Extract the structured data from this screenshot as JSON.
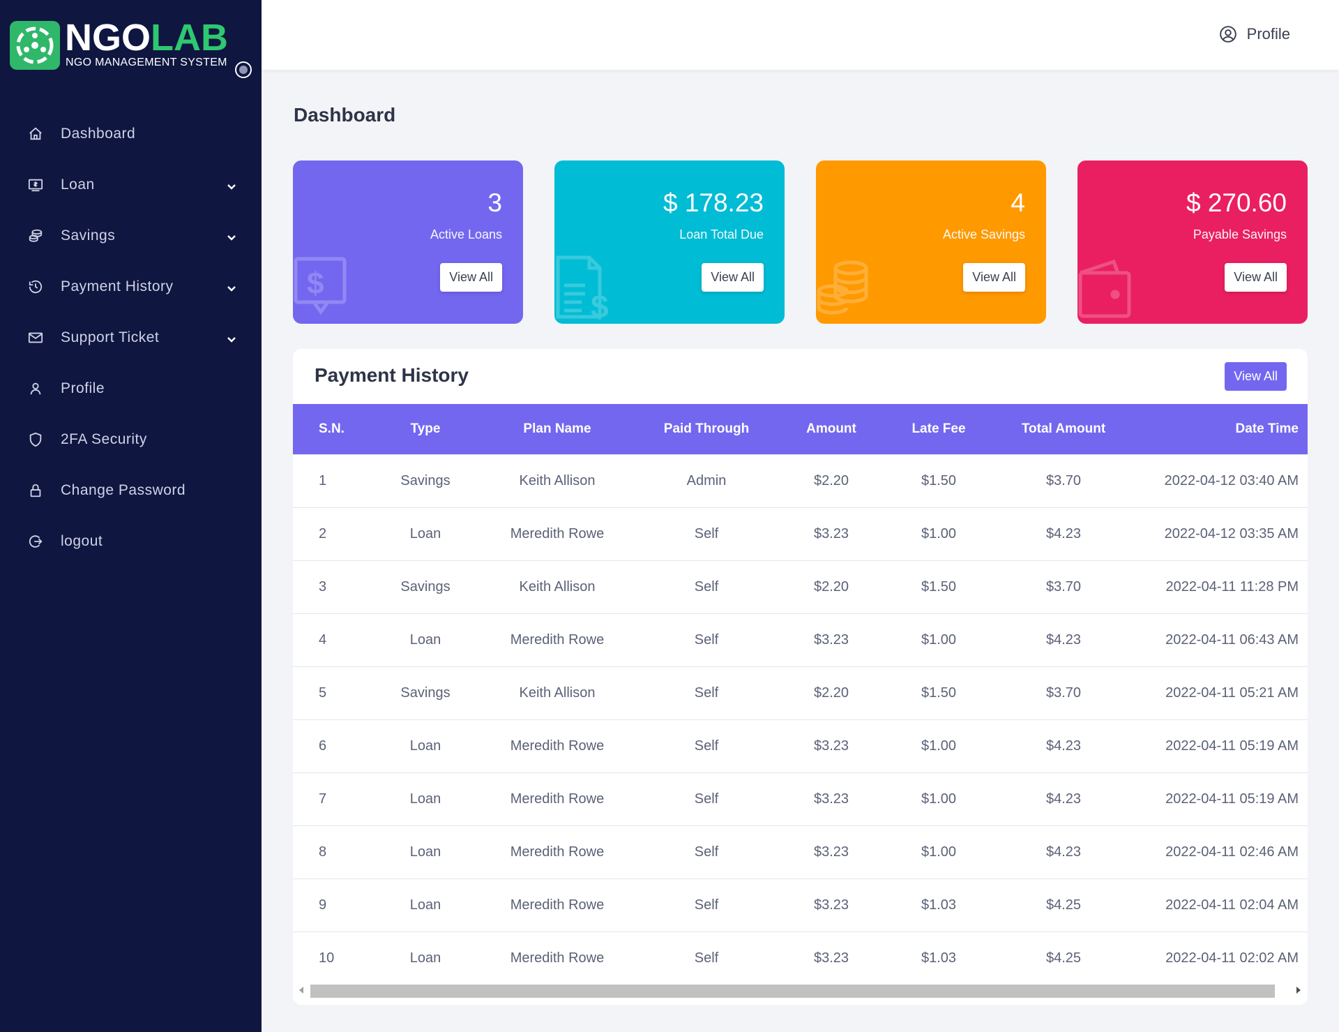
{
  "brand": {
    "name_part1": "NGO",
    "name_part2": "LAB",
    "subtitle": "NGO MANAGEMENT SYSTEM"
  },
  "sidebar": {
    "items": [
      {
        "label": "Dashboard",
        "icon": "home-icon",
        "has_submenu": false
      },
      {
        "label": "Loan",
        "icon": "money-bill-icon",
        "has_submenu": true
      },
      {
        "label": "Savings",
        "icon": "coins-icon",
        "has_submenu": true
      },
      {
        "label": "Payment History",
        "icon": "history-icon",
        "has_submenu": true
      },
      {
        "label": "Support Ticket",
        "icon": "envelope-icon",
        "has_submenu": true
      },
      {
        "label": "Profile",
        "icon": "user-icon",
        "has_submenu": false
      },
      {
        "label": "2FA Security",
        "icon": "shield-icon",
        "has_submenu": false
      },
      {
        "label": "Change Password",
        "icon": "lock-icon",
        "has_submenu": false
      },
      {
        "label": "logout",
        "icon": "logout-icon",
        "has_submenu": false
      }
    ]
  },
  "header": {
    "profile_label": "Profile"
  },
  "page_title": "Dashboard",
  "cards": [
    {
      "value": "3",
      "label": "Active Loans",
      "button": "View All",
      "color": "#7367f0",
      "icon": "dollar-chat-icon"
    },
    {
      "value": "$ 178.23",
      "label": "Loan Total Due",
      "button": "View All",
      "color": "#00bcd4",
      "icon": "invoice-dollar-icon"
    },
    {
      "value": "4",
      "label": "Active Savings",
      "button": "View All",
      "color": "#ff9900",
      "icon": "coins-stack-icon"
    },
    {
      "value": "$ 270.60",
      "label": "Payable Savings",
      "button": "View All",
      "color": "#ea1f61",
      "icon": "wallet-icon"
    }
  ],
  "payment_history": {
    "title": "Payment History",
    "view_all": "View All",
    "columns": [
      "S.N.",
      "Type",
      "Plan Name",
      "Paid Through",
      "Amount",
      "Late Fee",
      "Total Amount",
      "Date Time"
    ],
    "rows": [
      [
        "1",
        "Savings",
        "Keith Allison",
        "Admin",
        "$2.20",
        "$1.50",
        "$3.70",
        "2022-04-12 03:40 AM"
      ],
      [
        "2",
        "Loan",
        "Meredith Rowe",
        "Self",
        "$3.23",
        "$1.00",
        "$4.23",
        "2022-04-12 03:35 AM"
      ],
      [
        "3",
        "Savings",
        "Keith Allison",
        "Self",
        "$2.20",
        "$1.50",
        "$3.70",
        "2022-04-11 11:28 PM"
      ],
      [
        "4",
        "Loan",
        "Meredith Rowe",
        "Self",
        "$3.23",
        "$1.00",
        "$4.23",
        "2022-04-11 06:43 AM"
      ],
      [
        "5",
        "Savings",
        "Keith Allison",
        "Self",
        "$2.20",
        "$1.50",
        "$3.70",
        "2022-04-11 05:21 AM"
      ],
      [
        "6",
        "Loan",
        "Meredith Rowe",
        "Self",
        "$3.23",
        "$1.00",
        "$4.23",
        "2022-04-11 05:19 AM"
      ],
      [
        "7",
        "Loan",
        "Meredith Rowe",
        "Self",
        "$3.23",
        "$1.00",
        "$4.23",
        "2022-04-11 05:19 AM"
      ],
      [
        "8",
        "Loan",
        "Meredith Rowe",
        "Self",
        "$3.23",
        "$1.00",
        "$4.23",
        "2022-04-11 02:46 AM"
      ],
      [
        "9",
        "Loan",
        "Meredith Rowe",
        "Self",
        "$3.23",
        "$1.03",
        "$4.25",
        "2022-04-11 02:04 AM"
      ],
      [
        "10",
        "Loan",
        "Meredith Rowe",
        "Self",
        "$3.23",
        "$1.03",
        "$4.25",
        "2022-04-11 02:02 AM"
      ]
    ]
  },
  "colors": {
    "sidebar_bg": "#0f1640",
    "accent": "#7367f0",
    "brand_green": "#2fc76f"
  }
}
